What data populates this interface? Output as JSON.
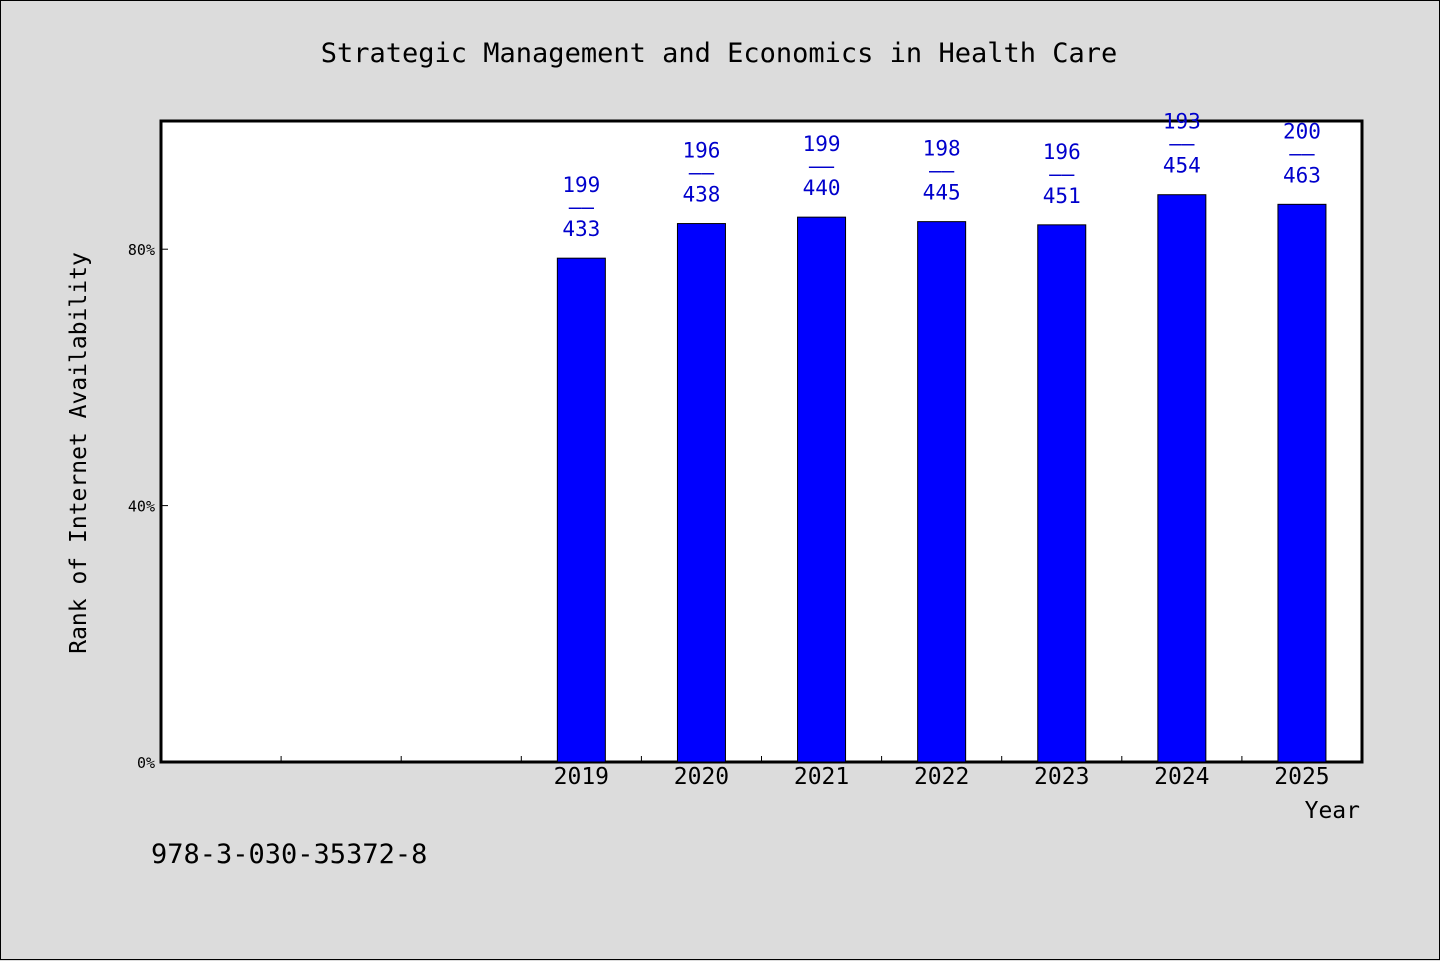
{
  "chart_data": {
    "type": "bar",
    "title": "Strategic Management and Economics in Health Care",
    "xlabel": "Year",
    "ylabel": "Rank of Internet Availability",
    "x_ticks": [
      "",
      "",
      "",
      "",
      "",
      "",
      "",
      "",
      "",
      ""
    ],
    "categories": [
      "2019",
      "2020",
      "2021",
      "2022",
      "2023",
      "2024",
      "2025"
    ],
    "values": [
      78.6,
      84.0,
      85.0,
      84.3,
      83.8,
      88.5,
      87.0
    ],
    "data_labels": [
      {
        "top": "199",
        "sep": "——",
        "bottom": "433"
      },
      {
        "top": "196",
        "sep": "——",
        "bottom": "438"
      },
      {
        "top": "199",
        "sep": "——",
        "bottom": "440"
      },
      {
        "top": "198",
        "sep": "——",
        "bottom": "445"
      },
      {
        "top": "196",
        "sep": "——",
        "bottom": "451"
      },
      {
        "top": "193",
        "sep": "——",
        "bottom": "454"
      },
      {
        "top": "200",
        "sep": "——",
        "bottom": "463"
      }
    ],
    "ylim": [
      0,
      100
    ],
    "y_ticks": [
      {
        "value": 0,
        "label": "0%"
      },
      {
        "value": 40,
        "label": "40%"
      },
      {
        "value": 80,
        "label": "80%"
      }
    ],
    "grid": false,
    "bar_color": "#0000ff",
    "label_color": "#0000cc",
    "background": "#dcdcdc",
    "plot_background": "#ffffff"
  },
  "footer": {
    "isbn": "978-3-030-35372-8"
  }
}
